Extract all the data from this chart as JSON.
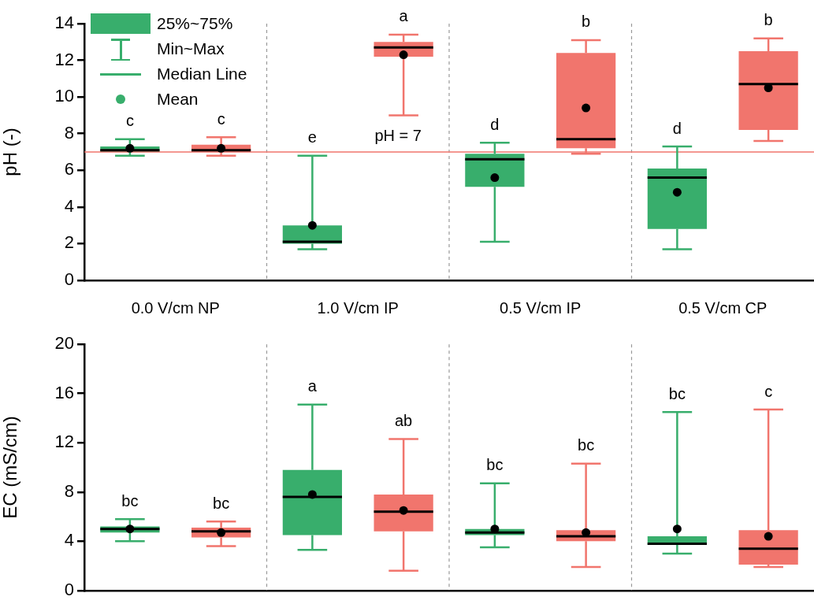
{
  "chart_data": [
    {
      "type": "box",
      "ylabel": "pH (-)",
      "categories": [
        "0.0 V/cm NP",
        "1.0 V/cm IP",
        "0.5 V/cm IP",
        "0.5 V/cm CP"
      ],
      "ylim": [
        0,
        14
      ],
      "yticks": [
        0,
        2,
        4,
        6,
        8,
        10,
        12,
        14
      ],
      "grid": "x",
      "legend": "top left",
      "series": [
        {
          "color": "#38ae6c",
          "boxes": [
            {
              "low": 6.8,
              "q1": 7.0,
              "median": 7.1,
              "q3": 7.3,
              "high": 7.7,
              "mean": 7.2
            },
            {
              "low": 1.7,
              "q1": 2.0,
              "median": 2.1,
              "q3": 3.0,
              "high": 6.8,
              "mean": 3.0
            },
            {
              "low": 2.1,
              "q1": 5.1,
              "median": 6.6,
              "q3": 6.9,
              "high": 7.5,
              "mean": 5.6
            },
            {
              "low": 1.7,
              "q1": 2.8,
              "median": 5.6,
              "q3": 6.1,
              "high": 7.3,
              "mean": 4.8
            }
          ]
        },
        {
          "color": "#f1756d",
          "boxes": [
            {
              "low": 6.8,
              "q1": 7.0,
              "median": 7.1,
              "q3": 7.4,
              "high": 7.8,
              "mean": 7.2
            },
            {
              "low": 9.0,
              "q1": 12.2,
              "median": 12.7,
              "q3": 13.0,
              "high": 13.4,
              "mean": 12.3
            },
            {
              "low": 6.9,
              "q1": 7.2,
              "median": 7.7,
              "q3": 12.4,
              "high": 13.1,
              "mean": 9.4
            },
            {
              "low": 7.6,
              "q1": 8.2,
              "median": 10.7,
              "q3": 12.5,
              "high": 13.2,
              "mean": 10.5
            }
          ]
        }
      ],
      "ref_lines": [
        {
          "axis": "y",
          "value": 7,
          "label": "pH = 7",
          "color": "#f1756d"
        }
      ],
      "annotations": [
        "c",
        "c",
        "e",
        "a",
        "d",
        "b",
        "d",
        "b",
        "25%~75%",
        "Min~Max",
        "Median Line",
        "Mean"
      ]
    },
    {
      "type": "box",
      "ylabel": "EC (mS/cm)",
      "categories": [
        null,
        null,
        null,
        null
      ],
      "ylim": [
        0,
        20
      ],
      "yticks": [
        0,
        4,
        8,
        12,
        16,
        20
      ],
      "grid": "x",
      "tick_labels": "y",
      "series": [
        {
          "color": "#38ae6c",
          "boxes": [
            {
              "low": 4.0,
              "q1": 4.7,
              "median": 5.0,
              "q3": 5.2,
              "high": 5.8,
              "mean": 5.0
            },
            {
              "low": 3.3,
              "q1": 4.5,
              "median": 7.6,
              "q3": 9.8,
              "high": 15.1,
              "mean": 7.8
            },
            {
              "low": 3.5,
              "q1": 4.5,
              "median": 4.7,
              "q3": 5.0,
              "high": 8.7,
              "mean": 5.0
            },
            {
              "low": 3.0,
              "q1": 3.7,
              "median": 3.8,
              "q3": 4.4,
              "high": 14.5,
              "mean": 5.0
            }
          ]
        },
        {
          "color": "#f1756d",
          "boxes": [
            {
              "low": 3.6,
              "q1": 4.3,
              "median": 4.8,
              "q3": 5.1,
              "high": 5.6,
              "mean": 4.7
            },
            {
              "low": 1.6,
              "q1": 4.8,
              "median": 6.4,
              "q3": 7.8,
              "high": 12.3,
              "mean": 6.5
            },
            {
              "low": 1.9,
              "q1": 4.0,
              "median": 4.4,
              "q3": 4.9,
              "high": 10.3,
              "mean": 4.7
            },
            {
              "low": 1.9,
              "q1": 2.1,
              "median": 3.4,
              "q3": 4.9,
              "high": 14.7,
              "mean": 4.4
            }
          ]
        }
      ],
      "annotations": [
        "bc",
        "bc",
        "a",
        "ab",
        "bc",
        "bc",
        "bc",
        "c"
      ]
    }
  ]
}
